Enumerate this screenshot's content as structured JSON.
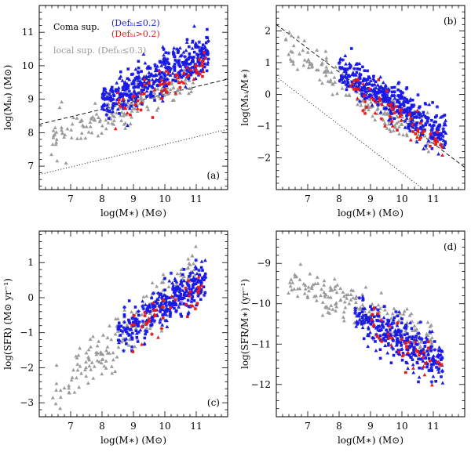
{
  "colors": {
    "coma_low": "#1a1ae6",
    "coma_high": "#e61a1a",
    "local": "#9a9a9a",
    "axis": "#000000"
  },
  "legend": {
    "coma": "Coma sup.",
    "low_def": "(Defₕᵢ≤0.2)",
    "high_def": "(Defₕᵢ>0.2)",
    "local": "local sup. (Defₕᵢ≤0.3)"
  },
  "chart_data": [
    {
      "id": "a",
      "type": "scatter",
      "panel_label": "(a)",
      "xlabel": "log(M∗) (M⊙)",
      "ylabel": "log(Mₕᵢ) (M⊙)",
      "xlim": [
        6.0,
        12.0
      ],
      "ylim": [
        6.3,
        11.8
      ],
      "xticks": [
        7,
        8,
        9,
        10,
        11
      ],
      "yticks": [
        7,
        8,
        9,
        10,
        11
      ],
      "grid": false,
      "legend_position": "top-left",
      "lines": [
        {
          "style": "dashed",
          "points": [
            [
              6.0,
              8.25
            ],
            [
              12.0,
              9.6
            ]
          ]
        },
        {
          "style": "dotted",
          "points": [
            [
              6.0,
              6.75
            ],
            [
              12.0,
              8.1
            ]
          ]
        }
      ],
      "clouds": [
        {
          "series": "local",
          "n": 190,
          "x_range": [
            6.3,
            10.9
          ],
          "relation": [
            0.42,
            5.1
          ],
          "scatter": 0.28,
          "seed": 11
        },
        {
          "series": "coma_low",
          "n": 440,
          "x_range": [
            8.0,
            11.4
          ],
          "relation": [
            0.45,
            5.3
          ],
          "scatter": 0.3,
          "seed": 12
        },
        {
          "series": "coma_high",
          "n": 70,
          "x_range": [
            8.3,
            11.3
          ],
          "relation": [
            0.38,
            5.55
          ],
          "scatter": 0.3,
          "seed": 13
        }
      ]
    },
    {
      "id": "b",
      "type": "scatter",
      "panel_label": "(b)",
      "xlabel": "log(M∗) (M⊙)",
      "ylabel": "log(Mₕᵢ/M∗)",
      "xlim": [
        6.0,
        12.0
      ],
      "ylim": [
        -3.0,
        2.8
      ],
      "xticks": [
        7,
        8,
        9,
        10,
        11
      ],
      "yticks": [
        -2,
        -1,
        0,
        1,
        2
      ],
      "grid": false,
      "legend_position": "none",
      "lines": [
        {
          "style": "dashed",
          "points": [
            [
              6.0,
              2.2
            ],
            [
              12.0,
              -2.3
            ]
          ]
        },
        {
          "style": "dotted",
          "points": [
            [
              6.0,
              0.55
            ],
            [
              10.7,
              -3.0
            ]
          ]
        }
      ],
      "clouds": [
        {
          "series": "local",
          "n": 190,
          "x_range": [
            6.3,
            10.9
          ],
          "relation": [
            -0.62,
            5.4
          ],
          "scatter": 0.28,
          "seed": 21
        },
        {
          "series": "coma_low",
          "n": 440,
          "x_range": [
            8.0,
            11.4
          ],
          "relation": [
            -0.62,
            5.75
          ],
          "scatter": 0.28,
          "seed": 22
        },
        {
          "series": "coma_high",
          "n": 70,
          "x_range": [
            8.3,
            11.3
          ],
          "relation": [
            -0.7,
            6.2
          ],
          "scatter": 0.3,
          "seed": 23
        }
      ]
    },
    {
      "id": "c",
      "type": "scatter",
      "panel_label": "(c)",
      "xlabel": "log(M∗) (M⊙)",
      "ylabel": "log(SFR) (M⊙ yr⁻¹)",
      "xlim": [
        6.0,
        12.0
      ],
      "ylim": [
        -3.4,
        1.9
      ],
      "xticks": [
        7,
        8,
        9,
        10,
        11
      ],
      "yticks": [
        -3,
        -2,
        -1,
        0,
        1
      ],
      "grid": false,
      "legend_position": "none",
      "lines": [],
      "clouds": [
        {
          "series": "local",
          "n": 200,
          "x_range": [
            6.4,
            11.0
          ],
          "relation": [
            0.78,
            -7.8
          ],
          "scatter": 0.32,
          "seed": 31
        },
        {
          "series": "coma_low",
          "n": 330,
          "x_range": [
            8.5,
            11.3
          ],
          "relation": [
            0.58,
            -6.0
          ],
          "scatter": 0.3,
          "seed": 32
        },
        {
          "series": "coma_high",
          "n": 45,
          "x_range": [
            8.9,
            11.3
          ],
          "relation": [
            0.55,
            -5.9
          ],
          "scatter": 0.3,
          "seed": 33
        }
      ]
    },
    {
      "id": "d",
      "type": "scatter",
      "panel_label": "(d)",
      "xlabel": "log(M∗) (M⊙)",
      "ylabel": "log(SFR/M∗) (yr⁻¹)",
      "xlim": [
        6.0,
        12.0
      ],
      "ylim": [
        -12.8,
        -8.2
      ],
      "xticks": [
        7,
        8,
        9,
        10,
        11
      ],
      "yticks": [
        -12,
        -11,
        -10,
        -9
      ],
      "grid": false,
      "legend_position": "none",
      "lines": [],
      "clouds": [
        {
          "series": "local",
          "n": 200,
          "x_range": [
            6.3,
            11.0
          ],
          "relation": [
            -0.32,
            -7.4
          ],
          "scatter": 0.25,
          "seed": 41
        },
        {
          "series": "coma_low",
          "n": 330,
          "x_range": [
            8.5,
            11.3
          ],
          "relation": [
            -0.45,
            -6.4
          ],
          "scatter": 0.28,
          "seed": 42
        },
        {
          "series": "coma_high",
          "n": 45,
          "x_range": [
            8.9,
            11.3
          ],
          "relation": [
            -0.48,
            -6.2
          ],
          "scatter": 0.28,
          "seed": 43
        }
      ]
    }
  ]
}
